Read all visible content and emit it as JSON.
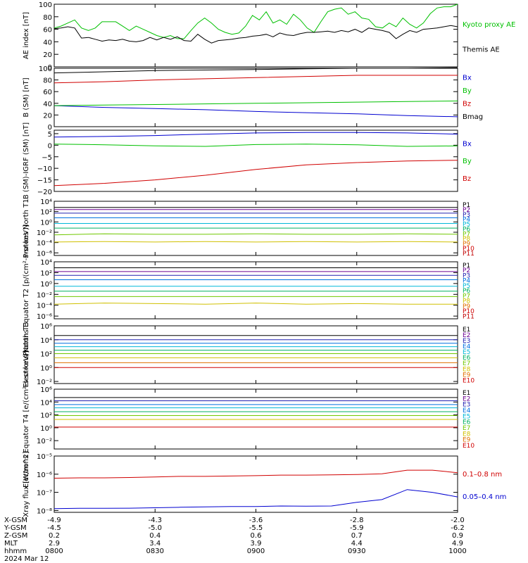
{
  "chart_data": [
    {
      "type": "line",
      "ylabel": "AE index [nT]",
      "ylim": [
        0,
        100
      ],
      "yticks": [
        "0",
        "20",
        "40",
        "60",
        "80",
        "100"
      ],
      "legend": [
        "Kyoto proxy AE",
        "Themis AE"
      ],
      "legend_colors": [
        "#00c000",
        "#000000"
      ],
      "series": [
        {
          "name": "Kyoto proxy AE",
          "color": "#00c000",
          "values": [
            62,
            65,
            70,
            75,
            62,
            58,
            62,
            72,
            72,
            72,
            65,
            58,
            65,
            60,
            55,
            50,
            47,
            50,
            45,
            45,
            58,
            70,
            78,
            70,
            60,
            55,
            52,
            54,
            65,
            82,
            75,
            88,
            70,
            75,
            68,
            84,
            75,
            62,
            55,
            72,
            88,
            92,
            94,
            84,
            88,
            78,
            76,
            64,
            62,
            70,
            64,
            78,
            68,
            62,
            70,
            85,
            94,
            96,
            96,
            100
          ]
        },
        {
          "name": "Themis AE",
          "color": "#000000",
          "values": [
            61,
            62,
            64,
            62,
            46,
            47,
            44,
            41,
            43,
            42,
            44,
            41,
            40,
            42,
            47,
            43,
            47,
            44,
            48,
            42,
            41,
            52,
            44,
            38,
            42,
            43,
            44,
            46,
            47,
            49,
            50,
            52,
            48,
            54,
            51,
            50,
            53,
            55,
            55,
            56,
            57,
            55,
            58,
            56,
            60,
            55,
            62,
            60,
            58,
            55,
            45,
            52,
            58,
            55,
            60,
            61,
            62,
            64,
            66,
            64
          ]
        }
      ]
    },
    {
      "type": "line",
      "ylabel": "B (SM) [nT]",
      "ylim": [
        0,
        100
      ],
      "yticks": [
        "0",
        "20",
        "40",
        "60",
        "80",
        "100"
      ],
      "legend": [
        "Bx",
        "By",
        "Bz",
        "Bmag"
      ],
      "legend_colors": [
        "#0000d0",
        "#00c000",
        "#d00000",
        "#000000"
      ],
      "series": [
        {
          "name": "Bx",
          "color": "#0000d0",
          "values": [
            36,
            33,
            31,
            29,
            26,
            24,
            22,
            19,
            17
          ]
        },
        {
          "name": "By",
          "color": "#00c000",
          "values": [
            36,
            37,
            38,
            39,
            40,
            41,
            42,
            43,
            44
          ]
        },
        {
          "name": "Bz",
          "color": "#d00000",
          "values": [
            75,
            77,
            80,
            82,
            84,
            86,
            88,
            88,
            88
          ]
        },
        {
          "name": "Bmag",
          "color": "#000000",
          "values": [
            92,
            94,
            96,
            97,
            98,
            99,
            100,
            100,
            101
          ]
        }
      ]
    },
    {
      "type": "line",
      "ylabel": "B (SM)-IGRF (SM) [nT]",
      "ylim": [
        -20,
        6.5
      ],
      "yticks": [
        "−20",
        "−15",
        "−10",
        "−5",
        "0",
        "5"
      ],
      "legend": [
        "Bx",
        "By",
        "Bz"
      ],
      "legend_colors": [
        "#0000d0",
        "#00c000",
        "#d00000"
      ],
      "series": [
        {
          "name": "Bx",
          "color": "#0000d0",
          "values": [
            3.5,
            3.8,
            4.2,
            4.8,
            5.3,
            5.5,
            5.5,
            5.3,
            4.8
          ]
        },
        {
          "name": "By",
          "color": "#00c000",
          "values": [
            0.5,
            0.2,
            -0.3,
            -0.5,
            0.3,
            0.5,
            0.2,
            -0.5,
            -0.3
          ]
        },
        {
          "name": "Bz",
          "color": "#d00000",
          "values": [
            -17.5,
            -16.5,
            -15,
            -13,
            -10.5,
            -8.5,
            -7.5,
            -6.8,
            -6.5
          ]
        }
      ]
    },
    {
      "type": "line",
      "scale": "log",
      "ylabel": "Protons North T1",
      "ylim": [
        -6.5,
        4
      ],
      "yticks": [
        "10⁴",
        "10²",
        "10⁰",
        "10⁻²",
        "10⁻⁴",
        "10⁻⁶"
      ],
      "legend": [
        "P1",
        "P2",
        "P3",
        "P4",
        "P5",
        "P6",
        "P7",
        "P8",
        "P9",
        "P10",
        "P11"
      ],
      "legend_colors": [
        "#000000",
        "#6a0090",
        "#2020b0",
        "#0070e0",
        "#00b8d8",
        "#00b060",
        "#70c800",
        "#d0c000",
        "#e07000",
        "#d00000",
        "#c00000"
      ],
      "series": [
        {
          "name": "P1",
          "color": "#000000",
          "values": [
            2.8,
            2.8,
            2.8,
            2.8,
            2.8,
            2.8,
            2.8,
            2.8,
            2.8
          ]
        },
        {
          "name": "P2",
          "color": "#6a0090",
          "values": [
            2.4,
            2.4,
            2.4,
            2.4,
            2.4,
            2.4,
            2.4,
            2.4,
            2.4
          ]
        },
        {
          "name": "P3",
          "color": "#2020b0",
          "values": [
            1.7,
            1.7,
            1.7,
            1.7,
            1.7,
            1.7,
            1.7,
            1.7,
            1.7
          ]
        },
        {
          "name": "P4",
          "color": "#0070e0",
          "values": [
            0.8,
            0.8,
            0.8,
            0.8,
            0.8,
            0.8,
            0.8,
            0.8,
            0.8
          ]
        },
        {
          "name": "P5",
          "color": "#00b8d8",
          "values": [
            -0.3,
            -0.3,
            -0.3,
            -0.3,
            -0.3,
            -0.3,
            -0.3,
            -0.3,
            -0.3
          ]
        },
        {
          "name": "P6",
          "color": "#00b060",
          "values": [
            -1.2,
            -1.2,
            -1.2,
            -1.2,
            -1.2,
            -1.2,
            -1.2,
            -1.2,
            -1.2
          ]
        },
        {
          "name": "P7",
          "color": "#70c800",
          "values": [
            -2.5,
            -2.3,
            -2.4,
            -2.4,
            -2.3,
            -2.4,
            -2.4,
            -2.3,
            -2.4
          ]
        },
        {
          "name": "P8",
          "color": "#d0c000",
          "values": [
            -3.9,
            -3.8,
            -3.9,
            -3.8,
            -3.9,
            -3.8,
            -3.9,
            -3.8,
            -3.9
          ]
        }
      ]
    },
    {
      "type": "line",
      "scale": "log",
      "ylabel": "Protons Equator T2 [p/(cm²-s-sr-keV)]",
      "ylim": [
        -6.5,
        4
      ],
      "yticks": [
        "10⁴",
        "10²",
        "10⁰",
        "10⁻²",
        "10⁻⁴",
        "10⁻⁶"
      ],
      "legend": [
        "P1",
        "P2",
        "P3",
        "P4",
        "P5",
        "P6",
        "P7",
        "P8",
        "P9",
        "P10",
        "P11"
      ],
      "legend_colors": [
        "#000000",
        "#6a0090",
        "#2020b0",
        "#0070e0",
        "#00b8d8",
        "#00b060",
        "#70c800",
        "#d0c000",
        "#e07000",
        "#d00000",
        "#c00000"
      ],
      "series": [
        {
          "name": "P1",
          "color": "#000000",
          "values": [
            2.9,
            2.9,
            2.9,
            2.9,
            2.9,
            2.9,
            2.9,
            2.9,
            2.9
          ]
        },
        {
          "name": "P2",
          "color": "#6a0090",
          "values": [
            2.2,
            2.2,
            2.2,
            2.2,
            2.2,
            2.2,
            2.2,
            2.2,
            2.2
          ]
        },
        {
          "name": "P3",
          "color": "#2020b0",
          "values": [
            1.5,
            1.5,
            1.5,
            1.5,
            1.5,
            1.5,
            1.5,
            1.5,
            1.5
          ]
        },
        {
          "name": "P4",
          "color": "#0070e0",
          "values": [
            0.7,
            0.7,
            0.7,
            0.7,
            0.7,
            0.7,
            0.7,
            0.7,
            0.7
          ]
        },
        {
          "name": "P5",
          "color": "#00b8d8",
          "values": [
            -0.5,
            -0.5,
            -0.5,
            -0.5,
            -0.5,
            -0.5,
            -0.5,
            -0.5,
            -0.5
          ]
        },
        {
          "name": "P6",
          "color": "#00b060",
          "values": [
            -1.4,
            -1.4,
            -1.4,
            -1.4,
            -1.4,
            -1.4,
            -1.4,
            -1.4,
            -1.4
          ]
        },
        {
          "name": "P7",
          "color": "#70c800",
          "values": [
            -2.4,
            -2.4,
            -2.4,
            -2.4,
            -2.4,
            -2.4,
            -2.4,
            -2.4,
            -2.4
          ]
        },
        {
          "name": "P8",
          "color": "#d0c000",
          "values": [
            -3.8,
            -3.6,
            -3.7,
            -3.8,
            -3.6,
            -3.8,
            -3.7,
            -3.8,
            -3.8
          ]
        }
      ]
    },
    {
      "type": "line",
      "scale": "log",
      "ylabel": "Electrons North T3",
      "ylim": [
        -2.3,
        6
      ],
      "yticks": [
        "10⁶",
        "10⁴",
        "10²",
        "10⁰",
        "10⁻²"
      ],
      "legend": [
        "E1",
        "E2",
        "E3",
        "E4",
        "E5",
        "E6",
        "E7",
        "E8",
        "E9",
        "E10"
      ],
      "legend_colors": [
        "#000000",
        "#6a0090",
        "#2020b0",
        "#0070e0",
        "#00b8d8",
        "#00b060",
        "#70c800",
        "#d0c000",
        "#e07000",
        "#d00000"
      ],
      "series": [
        {
          "name": "E1",
          "color": "#000000",
          "values": [
            4.6,
            4.6,
            4.6,
            4.6,
            4.6,
            4.6,
            4.6,
            4.6,
            4.6
          ]
        },
        {
          "name": "E2",
          "color": "#2020b0",
          "values": [
            4.0,
            4.0,
            4.0,
            4.0,
            4.0,
            4.0,
            4.0,
            4.0,
            4.0
          ]
        },
        {
          "name": "E3",
          "color": "#0070e0",
          "values": [
            3.5,
            3.5,
            3.5,
            3.5,
            3.5,
            3.5,
            3.5,
            3.5,
            3.5
          ]
        },
        {
          "name": "E4",
          "color": "#00b8d8",
          "values": [
            3.0,
            3.0,
            3.0,
            3.0,
            3.0,
            3.0,
            3.0,
            3.0,
            3.0
          ]
        },
        {
          "name": "E5",
          "color": "#00b060",
          "values": [
            2.5,
            2.5,
            2.5,
            2.5,
            2.5,
            2.5,
            2.5,
            2.5,
            2.5
          ]
        },
        {
          "name": "E6",
          "color": "#70c800",
          "values": [
            2.0,
            2.0,
            2.0,
            2.0,
            2.0,
            2.0,
            2.0,
            2.0,
            2.0
          ]
        },
        {
          "name": "E7",
          "color": "#d0c000",
          "values": [
            1.4,
            1.4,
            1.4,
            1.4,
            1.4,
            1.4,
            1.4,
            1.4,
            1.4
          ]
        },
        {
          "name": "E8",
          "color": "#e07000",
          "values": [
            0.7,
            0.7,
            0.7,
            0.7,
            0.7,
            0.7,
            0.7,
            0.7,
            0.7
          ]
        },
        {
          "name": "E9",
          "color": "#d00000",
          "values": [
            0.0,
            0.0,
            0.0,
            0.0,
            0.0,
            0.0,
            0.0,
            0.0,
            0.0
          ]
        }
      ]
    },
    {
      "type": "line",
      "scale": "log",
      "ylabel": "Electrons Equator T4 [e/(cm²-s-sr-keV)]",
      "ylim": [
        -3.3,
        6
      ],
      "yticks": [
        "10⁶",
        "10⁴",
        "10²",
        "10⁰",
        "10⁻²"
      ],
      "legend": [
        "E1",
        "E2",
        "E3",
        "E4",
        "E5",
        "E6",
        "E7",
        "E8",
        "E9",
        "E10"
      ],
      "legend_colors": [
        "#000000",
        "#6a0090",
        "#2020b0",
        "#0070e0",
        "#00b8d8",
        "#00b060",
        "#70c800",
        "#d0c000",
        "#e07000",
        "#d00000"
      ],
      "series": [
        {
          "name": "E1",
          "color": "#000000",
          "values": [
            4.7,
            4.7,
            4.7,
            4.7,
            4.7,
            4.7,
            4.7,
            4.7,
            4.7
          ]
        },
        {
          "name": "E2",
          "color": "#2020b0",
          "values": [
            4.2,
            4.2,
            4.2,
            4.2,
            4.2,
            4.2,
            4.2,
            4.2,
            4.2
          ]
        },
        {
          "name": "E3",
          "color": "#0070e0",
          "values": [
            3.6,
            3.6,
            3.6,
            3.6,
            3.6,
            3.6,
            3.6,
            3.6,
            3.6
          ]
        },
        {
          "name": "E4",
          "color": "#00b8d8",
          "values": [
            3.1,
            3.1,
            3.1,
            3.1,
            3.1,
            3.1,
            3.1,
            3.1,
            3.1
          ]
        },
        {
          "name": "E5",
          "color": "#00b060",
          "values": [
            2.5,
            2.5,
            2.5,
            2.5,
            2.5,
            2.5,
            2.5,
            2.5,
            2.5
          ]
        },
        {
          "name": "E6",
          "color": "#70c800",
          "values": [
            1.9,
            1.9,
            1.9,
            1.9,
            1.9,
            1.9,
            1.9,
            1.9,
            1.9
          ]
        },
        {
          "name": "E7",
          "color": "#d0c000",
          "values": [
            1.3,
            1.3,
            1.3,
            1.3,
            1.3,
            1.3,
            1.3,
            1.3,
            1.3
          ]
        },
        {
          "name": "E8",
          "color": "#d00000",
          "values": [
            0.1,
            0.1,
            0.1,
            0.1,
            0.1,
            0.1,
            0.1,
            0.1,
            0.1
          ]
        }
      ]
    },
    {
      "type": "line",
      "scale": "log",
      "ylabel": "Xray flux [W/m^2]",
      "ylim": [
        -8.1,
        -5
      ],
      "yticks": [
        "10⁻⁵",
        "10⁻⁶",
        "10⁻⁷",
        "10⁻⁸"
      ],
      "legend": [
        "0.1–0.8 nm",
        "0.05–0.4 nm"
      ],
      "legend_colors": [
        "#d00000",
        "#0000d0"
      ],
      "series": [
        {
          "name": "0.1–0.8 nm",
          "color": "#d00000",
          "values": [
            -6.22,
            -6.2,
            -6.2,
            -6.18,
            -6.15,
            -6.12,
            -6.12,
            -6.1,
            -6.08,
            -6.05,
            -6.05,
            -6.04,
            -6.02,
            -5.98,
            -5.78,
            -5.78,
            -5.92
          ]
        },
        {
          "name": "0.05–0.4 nm",
          "color": "#0000d0",
          "values": [
            -7.9,
            -7.88,
            -7.88,
            -7.87,
            -7.85,
            -7.82,
            -7.8,
            -7.78,
            -7.78,
            -7.75,
            -7.76,
            -7.75,
            -7.55,
            -7.4,
            -6.85,
            -7.0,
            -7.25
          ]
        }
      ]
    }
  ],
  "footer": {
    "rows": [
      {
        "label": "X-GSM",
        "values": [
          "-4.9",
          "-4.3",
          "-3.6",
          "-2.8",
          "-2.0"
        ]
      },
      {
        "label": "Y-GSM",
        "values": [
          "-4.5",
          "-5.0",
          "-5.5",
          "-5.9",
          "-6.2"
        ]
      },
      {
        "label": "Z-GSM",
        "values": [
          "0.2",
          "0.4",
          "0.6",
          "0.7",
          "0.9"
        ]
      },
      {
        "label": "MLT",
        "values": [
          "2.9",
          "3.4",
          "3.9",
          "4.4",
          "4.9"
        ]
      },
      {
        "label": "hhmm",
        "values": [
          "0800",
          "0830",
          "0900",
          "0930",
          "1000"
        ]
      }
    ],
    "date": "2024 Mar 12"
  }
}
